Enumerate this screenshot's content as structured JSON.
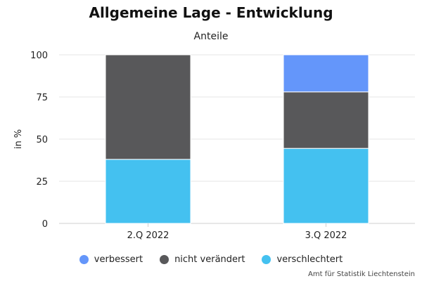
{
  "chart_data": {
    "type": "bar",
    "stacked": true,
    "title": "Allgemeine Lage - Entwicklung",
    "subtitle": "Anteile",
    "ylabel": "in %",
    "xlabel": "",
    "ylim": [
      0,
      100
    ],
    "yticks": [
      0,
      25,
      50,
      75,
      100
    ],
    "categories": [
      "2.Q 2022",
      "3.Q 2022"
    ],
    "series": [
      {
        "name": "verschlechtert",
        "color": "#44c1f0",
        "values": [
          38,
          44.5
        ]
      },
      {
        "name": "nicht verändert",
        "color": "#58585a",
        "values": [
          62,
          33.5
        ]
      },
      {
        "name": "verbessert",
        "color": "#6496fa",
        "values": [
          0,
          22
        ]
      }
    ],
    "grid": true,
    "legend_position": "bottom"
  },
  "legend": [
    {
      "label": "verbessert",
      "color": "#6496fa"
    },
    {
      "label": "nicht verändert",
      "color": "#58585a"
    },
    {
      "label": "verschlechtert",
      "color": "#44c1f0"
    }
  ],
  "source": "Amt für Statistik Liechtenstein"
}
